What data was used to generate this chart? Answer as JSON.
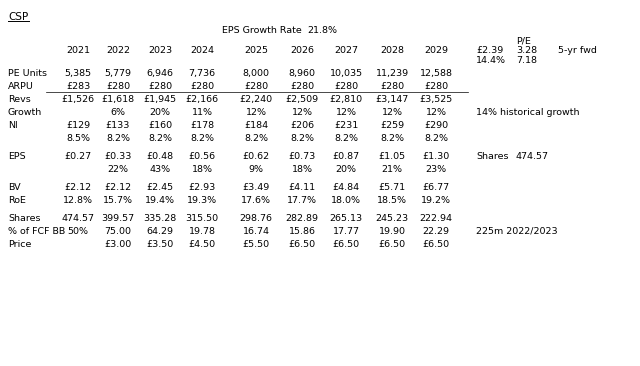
{
  "title": "CSP",
  "eps_growth_label": "EPS Growth Rate",
  "eps_growth_value": "21.8%",
  "pe_label": "P/E",
  "pe_value1": "£2.39",
  "pe_value2": "3.28",
  "pe_value3": "5-yr fwd",
  "pe_value4": "14.4%",
  "pe_value5": "7.18",
  "years": [
    "2021",
    "2022",
    "2023",
    "2024",
    "2025",
    "2026",
    "2027",
    "2028",
    "2029"
  ],
  "rows": [
    {
      "label": "PE Units",
      "values": [
        "5,385",
        "5,779",
        "6,946",
        "7,736",
        "8,000",
        "8,960",
        "10,035",
        "11,239",
        "12,588"
      ],
      "extra": null,
      "underline": false,
      "spacer_before": false
    },
    {
      "label": "ARPU",
      "values": [
        "£283",
        "£280",
        "£280",
        "£280",
        "£280",
        "£280",
        "£280",
        "£280",
        "£280"
      ],
      "extra": null,
      "underline": true,
      "spacer_before": false
    },
    {
      "label": "Revs",
      "values": [
        "£1,526",
        "£1,618",
        "£1,945",
        "£2,166",
        "£2,240",
        "£2,509",
        "£2,810",
        "£3,147",
        "£3,525"
      ],
      "extra": null,
      "underline": false,
      "spacer_before": false
    },
    {
      "label": "Growth",
      "values": [
        "",
        "6%",
        "20%",
        "11%",
        "12%",
        "12%",
        "12%",
        "12%",
        "12%"
      ],
      "extra": "14% historical growth",
      "underline": false,
      "spacer_before": false
    },
    {
      "label": "NI",
      "values": [
        "£129",
        "£133",
        "£160",
        "£178",
        "£184",
        "£206",
        "£231",
        "£259",
        "£290"
      ],
      "extra": null,
      "underline": false,
      "spacer_before": false
    },
    {
      "label": "",
      "values": [
        "8.5%",
        "8.2%",
        "8.2%",
        "8.2%",
        "8.2%",
        "8.2%",
        "8.2%",
        "8.2%",
        "8.2%"
      ],
      "extra": null,
      "underline": false,
      "spacer_before": false
    },
    {
      "label": "EPS",
      "values": [
        "£0.27",
        "£0.33",
        "£0.48",
        "£0.56",
        "£0.62",
        "£0.73",
        "£0.87",
        "£1.05",
        "£1.30"
      ],
      "extra_shares": "Shares",
      "extra_shares_val": "474.57",
      "underline": false,
      "spacer_before": true
    },
    {
      "label": "",
      "values": [
        "",
        "22%",
        "43%",
        "18%",
        "9%",
        "18%",
        "20%",
        "21%",
        "23%"
      ],
      "extra": null,
      "underline": false,
      "spacer_before": false
    },
    {
      "label": "BV",
      "values": [
        "£2.12",
        "£2.12",
        "£2.45",
        "£2.93",
        "£3.49",
        "£4.11",
        "£4.84",
        "£5.71",
        "£6.77"
      ],
      "extra": null,
      "underline": false,
      "spacer_before": true
    },
    {
      "label": "RoE",
      "values": [
        "12.8%",
        "15.7%",
        "19.4%",
        "19.3%",
        "17.6%",
        "17.7%",
        "18.0%",
        "18.5%",
        "19.2%"
      ],
      "extra": null,
      "underline": false,
      "spacer_before": false
    },
    {
      "label": "Shares",
      "values": [
        "474.57",
        "399.57",
        "335.28",
        "315.50",
        "298.76",
        "282.89",
        "265.13",
        "245.23",
        "222.94"
      ],
      "extra": null,
      "underline": false,
      "spacer_before": true
    },
    {
      "label": "% of FCF BB",
      "values": [
        "50%",
        "75.00",
        "64.29",
        "19.78",
        "16.74",
        "15.86",
        "17.77",
        "19.90",
        "22.29"
      ],
      "extra": "225m 2022/2023",
      "underline": false,
      "spacer_before": false
    },
    {
      "label": "Price",
      "values": [
        "",
        "£3.00",
        "£3.50",
        "£4.50",
        "£5.50",
        "£6.50",
        "£6.50",
        "£6.50",
        "£6.50"
      ],
      "extra": null,
      "underline": false,
      "spacer_before": false
    }
  ]
}
